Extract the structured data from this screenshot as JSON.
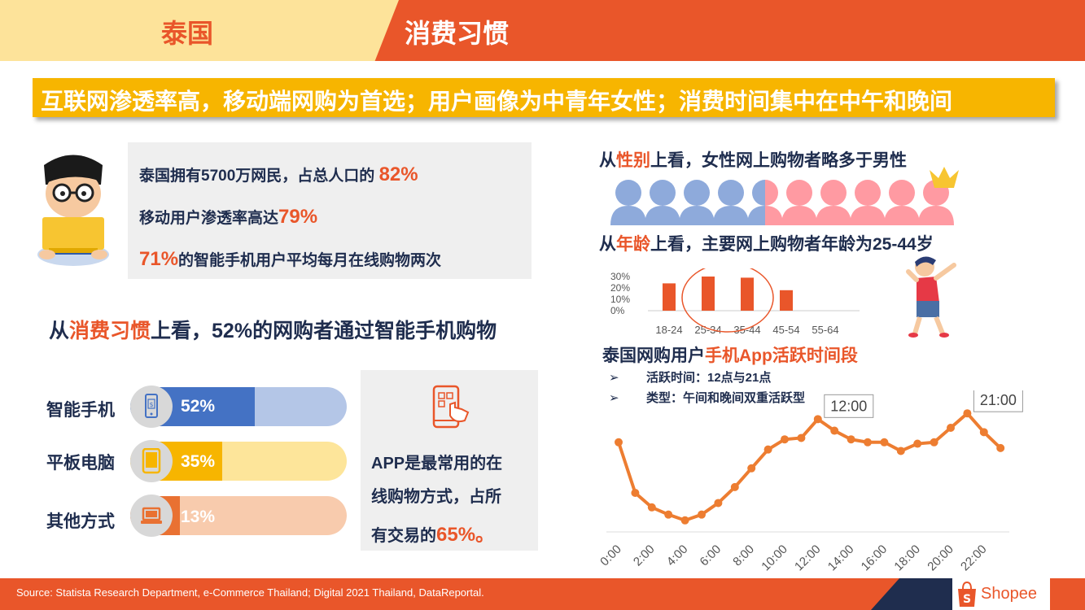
{
  "header": {
    "country": "泰国",
    "topic": "消费习惯"
  },
  "banner": "互联网渗透率高，移动端网购为首选；用户画像为中青年女性；消费时间集中在中午和晚间",
  "stats": {
    "s1_text": "泰国拥有5700万网民，占总人口的 ",
    "s1_value": "82%",
    "s2_text": "移动用户渗透率高达",
    "s2_value": "79%",
    "s3_value": "71%",
    "s3_text": "的智能手机用户平均每月在线购物两次"
  },
  "habit": {
    "prefix": "从",
    "hl": "消费习惯",
    "suffix": "上看，52%的网购者通过智能手机购物"
  },
  "devices": [
    {
      "label": "智能手机",
      "pct": "52%",
      "value": 52,
      "fill": "#4472c4",
      "track": "#b4c6e7"
    },
    {
      "label": "平板电脑",
      "pct": "35%",
      "value": 35,
      "fill": "#f7b500",
      "track": "#fde59a"
    },
    {
      "label": "其他方式",
      "pct": "13%",
      "value": 13,
      "fill": "#e97132",
      "track": "#f8cbad"
    }
  ],
  "app": {
    "line1": "APP是最常用的在",
    "line2": "线购物方式，占所",
    "line3_prefix": "有交易的",
    "line3_value": "65%。"
  },
  "gender": {
    "prefix": "从",
    "hl": "性别",
    "suffix": "上看，女性网上购物者略多于男性"
  },
  "age": {
    "prefix": "从",
    "hl": "年龄",
    "suffix": "上看，主要网上购物者年龄为25-44岁"
  },
  "active": {
    "prefix": "泰国网购用户",
    "hl": "手机App活跃时间段",
    "bullet1": "活跃时间：12点与21点",
    "bullet2": "类型：午间和晚间双重活跃型"
  },
  "chart_data": [
    {
      "type": "bar",
      "categories": [
        "18-24",
        "25-34",
        "35-44",
        "45-54",
        "55-64"
      ],
      "values": [
        24,
        30,
        29,
        18,
        0
      ],
      "yticks": [
        "30%",
        "20%",
        "10%",
        "0%"
      ],
      "ylim": [
        0,
        30
      ],
      "color": "#e9562a"
    },
    {
      "type": "line",
      "x": [
        "0:00",
        "1:00",
        "2:00",
        "3:00",
        "4:00",
        "5:00",
        "6:00",
        "7:00",
        "8:00",
        "9:00",
        "10:00",
        "11:00",
        "12:00",
        "13:00",
        "14:00",
        "15:00",
        "16:00",
        "17:00",
        "18:00",
        "19:00",
        "20:00",
        "21:00",
        "22:00",
        "23:00"
      ],
      "xticks": [
        "0:00",
        "2:00",
        "4:00",
        "6:00",
        "8:00",
        "10:00",
        "12:00",
        "14:00",
        "16:00",
        "18:00",
        "20:00",
        "22:00"
      ],
      "values": [
        62,
        27,
        17,
        12,
        8,
        12,
        20,
        31,
        44,
        57,
        64,
        65,
        78,
        70,
        64,
        62,
        62,
        56,
        61,
        62,
        72,
        82,
        69,
        58
      ],
      "ylim": [
        0,
        90
      ],
      "annotations": [
        "12:00",
        "21:00"
      ],
      "color": "#ed7d31"
    }
  ],
  "source": "Source: Statista Research Department, e-Commerce Thailand; Digital 2021 Thailand, DataReportal.",
  "logo": "Shopee"
}
